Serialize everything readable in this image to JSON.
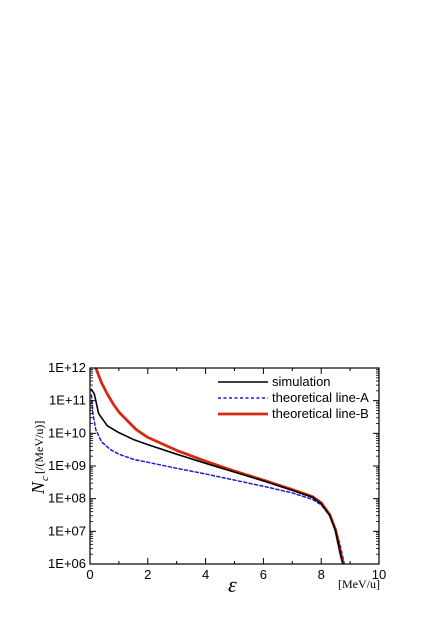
{
  "chart_data": {
    "type": "line",
    "xlabel": "ε",
    "xunit": "[MeV/u]",
    "ylabel": "N",
    "ylabel_sub": "c",
    "yunit": "[/(MeV/u)]",
    "xlim": [
      0,
      10
    ],
    "ylim_log10": [
      6,
      12
    ],
    "y_scale": "log",
    "x_ticks": [
      0,
      2,
      4,
      6,
      8,
      10
    ],
    "x_tick_labels": [
      "0",
      "2",
      "4",
      "6",
      "8",
      "10"
    ],
    "y_tick_labels": [
      "1E+12",
      "1E+11",
      "1E+10",
      "1E+09",
      "1E+08",
      "1E+07",
      "1E+06"
    ],
    "legend_position": "top-right",
    "series": [
      {
        "name": "simulation",
        "color": "#000000",
        "style": "solid",
        "x": [
          0.05,
          0.15,
          0.3,
          0.6,
          1.0,
          1.5,
          2.0,
          3.0,
          4.0,
          5.0,
          6.0,
          7.0,
          7.7,
          8.0,
          8.3,
          8.5,
          8.6,
          8.7,
          8.75,
          8.78
        ],
        "y": [
          220000000000.0,
          160000000000.0,
          40000000000.0,
          17000000000.0,
          10500000000.0,
          6500000000.0,
          4500000000.0,
          2300000000.0,
          1200000000.0,
          650000000.0,
          350000000.0,
          180000000.0,
          110000000.0,
          70000000.0,
          30000000.0,
          10000000.0,
          4000000.0,
          1500000.0,
          1000000.0,
          1000000.0
        ]
      },
      {
        "name": "theoretical line-A",
        "color": "#1a1adb",
        "style": "dashed",
        "x": [
          0.05,
          0.1,
          0.2,
          0.4,
          0.7,
          1.0,
          1.5,
          2.0,
          3.0,
          4.0,
          5.0,
          6.0,
          7.0,
          7.7,
          8.0,
          8.3,
          8.5,
          8.65,
          8.75,
          8.8
        ],
        "y": [
          150000000000.0,
          40000000000.0,
          13000000000.0,
          5500000000.0,
          3200000000.0,
          2300000000.0,
          1600000000.0,
          1300000000.0,
          850000000.0,
          570000000.0,
          370000000.0,
          240000000.0,
          150000000.0,
          95000000.0,
          65000000.0,
          30000000.0,
          12000000.0,
          4000000.0,
          1600000.0,
          1000000.0
        ]
      },
      {
        "name": "theoretical line-B",
        "color": "#d42a10",
        "style": "solid",
        "x": [
          0.2,
          0.4,
          0.6,
          0.8,
          1.0,
          1.3,
          1.6,
          2.0,
          3.0,
          4.0,
          5.0,
          6.0,
          7.0,
          7.7,
          8.0,
          8.3,
          8.5,
          8.6,
          8.7,
          8.78
        ],
        "y": [
          1000000000000.0,
          350000000000.0,
          160000000000.0,
          80000000000.0,
          45000000000.0,
          24000000000.0,
          13000000000.0,
          7500000000.0,
          3000000000.0,
          1400000000.0,
          700000000.0,
          370000000.0,
          190000000.0,
          115000000.0,
          75000000.0,
          32000000.0,
          11000000.0,
          4000000.0,
          1600000.0,
          1000000.0
        ]
      }
    ]
  }
}
